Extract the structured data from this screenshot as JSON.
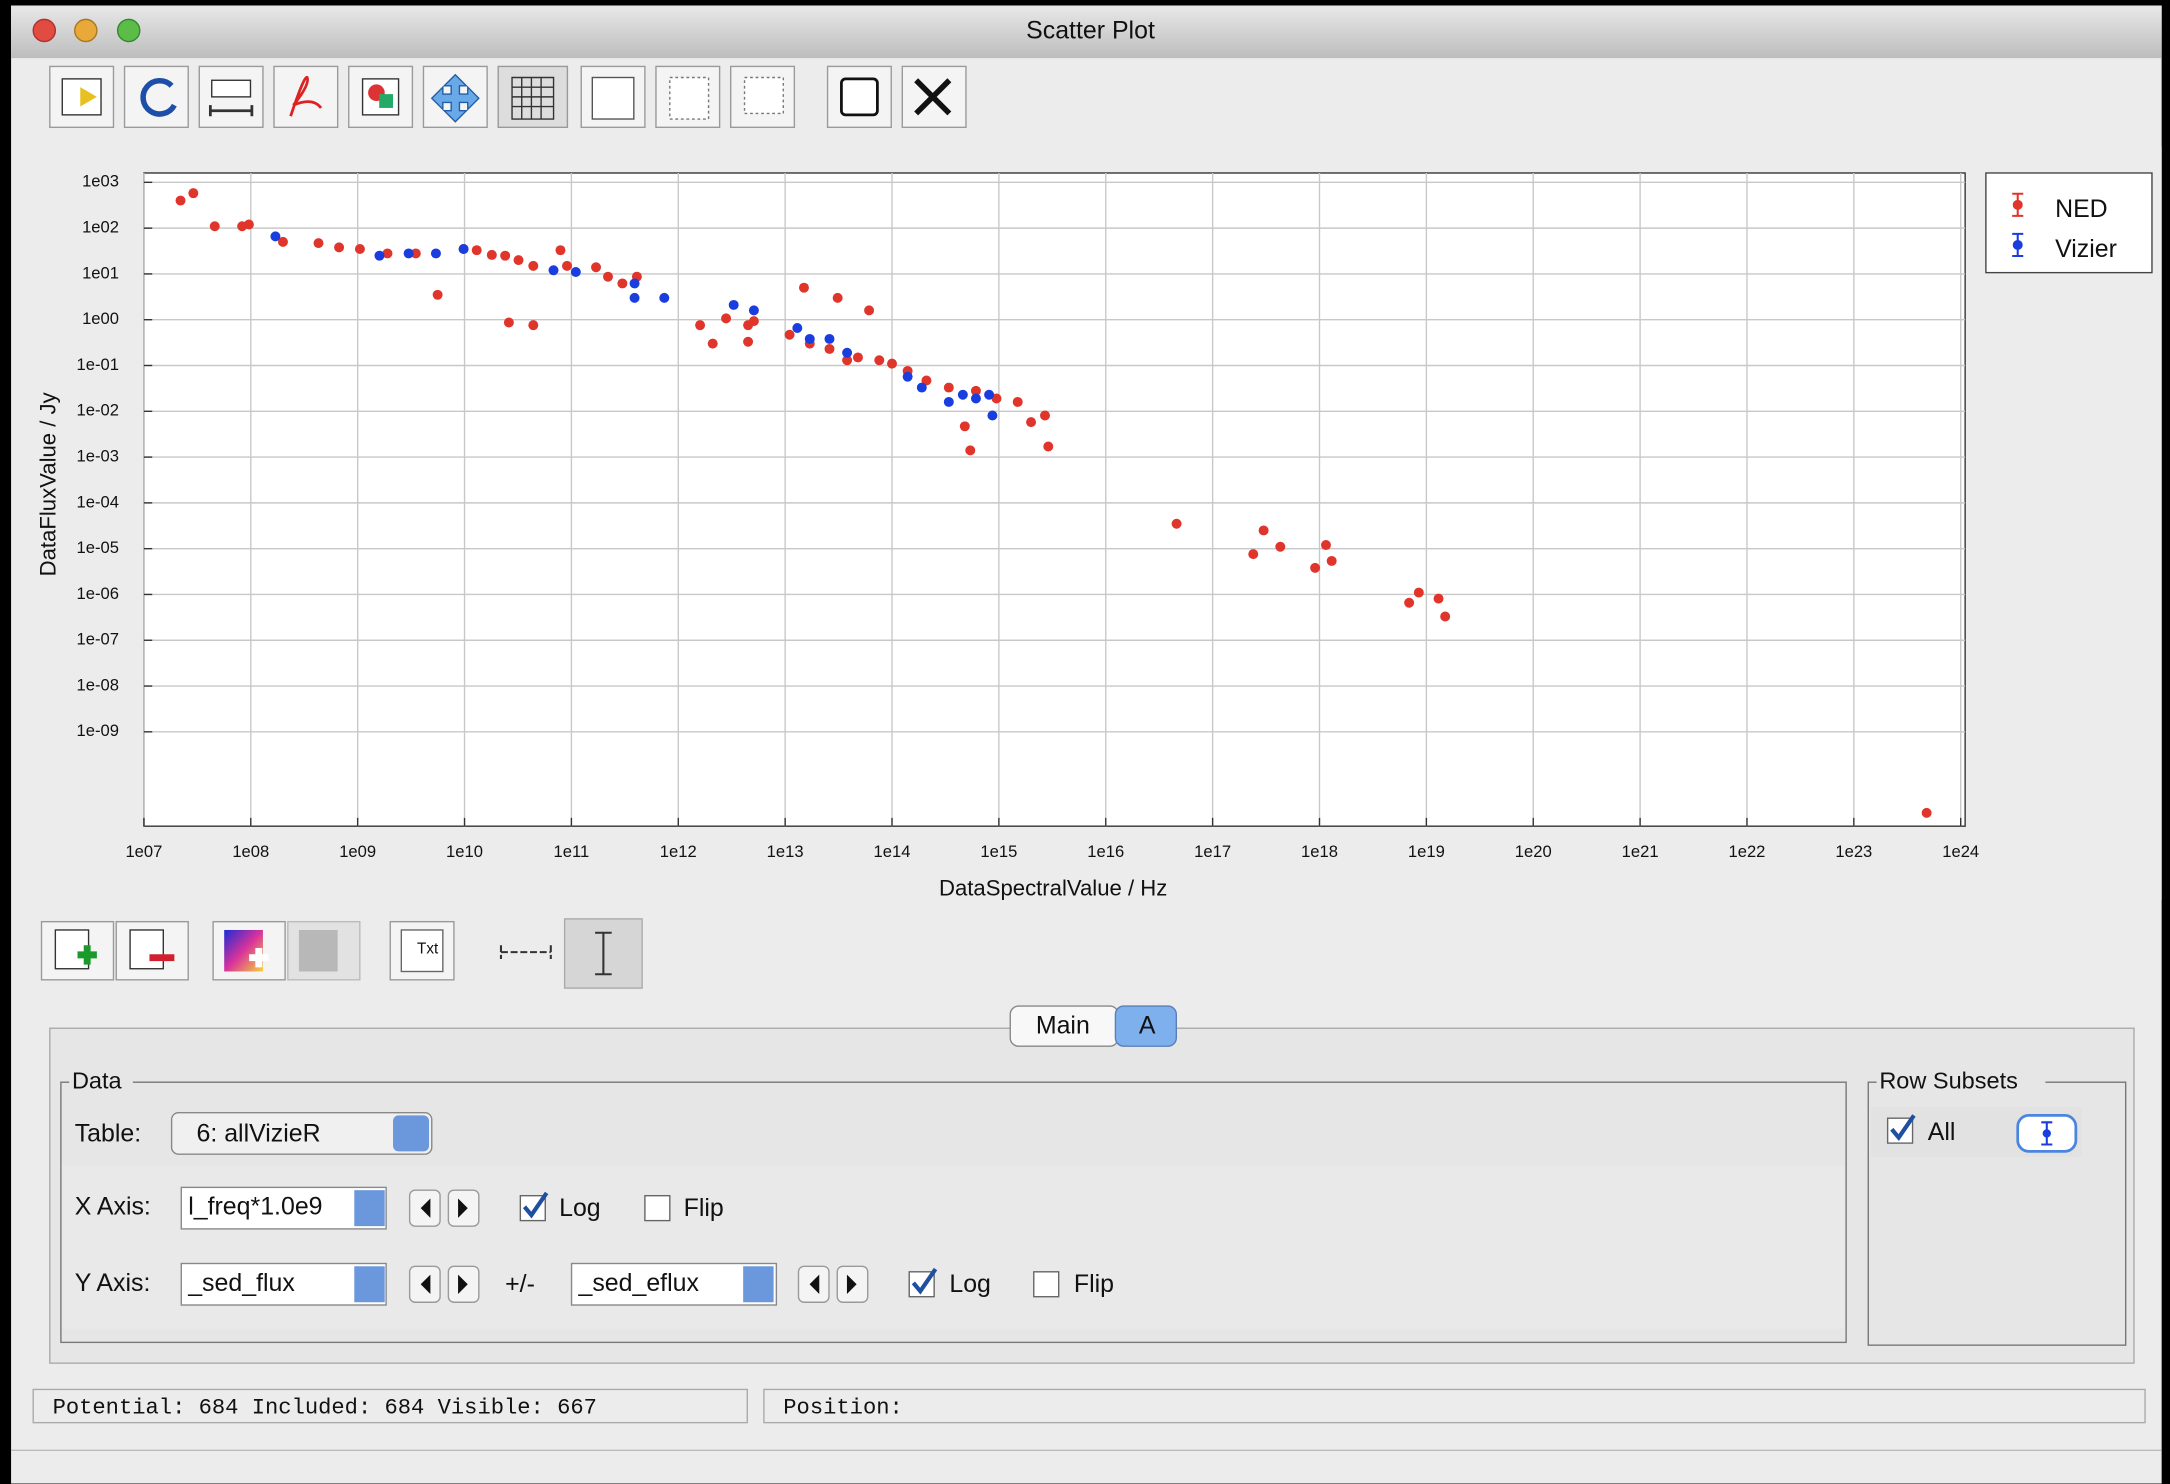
{
  "window": {
    "title": "Scatter Plot"
  },
  "chart_data": {
    "type": "scatter",
    "xlabel": "DataSpectralValue / Hz",
    "ylabel": "DataFluxValue / Jy",
    "xscale": "log",
    "yscale": "log",
    "grid": true,
    "legend": "right",
    "xlim": [
      10000000.0,
      1.1e+24
    ],
    "ylim": [
      8.7e-12,
      1600
    ],
    "xticks": [
      {
        "value": 10000000.0,
        "label": "1e07"
      },
      {
        "value": 100000000.0,
        "label": "1e08"
      },
      {
        "value": 1000000000.0,
        "label": "1e09"
      },
      {
        "value": 10000000000.0,
        "label": "1e10"
      },
      {
        "value": 100000000000.0,
        "label": "1e11"
      },
      {
        "value": 1000000000000.0,
        "label": "1e12"
      },
      {
        "value": 10000000000000.0,
        "label": "1e13"
      },
      {
        "value": 100000000000000.0,
        "label": "1e14"
      },
      {
        "value": 1000000000000000.0,
        "label": "1e15"
      },
      {
        "value": 1e+16,
        "label": "1e16"
      },
      {
        "value": 1e+17,
        "label": "1e17"
      },
      {
        "value": 1e+18,
        "label": "1e18"
      },
      {
        "value": 1e+19,
        "label": "1e19"
      },
      {
        "value": 1e+20,
        "label": "1e20"
      },
      {
        "value": 1e+21,
        "label": "1e21"
      },
      {
        "value": 1e+22,
        "label": "1e22"
      },
      {
        "value": 1e+23,
        "label": "1e23"
      },
      {
        "value": 1e+24,
        "label": "1e24"
      }
    ],
    "yticks": [
      {
        "value": 1000.0,
        "label": "1e03"
      },
      {
        "value": 100.0,
        "label": "1e02"
      },
      {
        "value": 10.0,
        "label": "1e01"
      },
      {
        "value": 1,
        "label": "1e00"
      },
      {
        "value": 0.1,
        "label": "1e-01"
      },
      {
        "value": 0.01,
        "label": "1e-02"
      },
      {
        "value": 0.001,
        "label": "1e-03"
      },
      {
        "value": 0.0001,
        "label": "1e-04"
      },
      {
        "value": 1e-05,
        "label": "1e-05"
      },
      {
        "value": 1e-06,
        "label": "1e-06"
      },
      {
        "value": 1e-07,
        "label": "1e-07"
      },
      {
        "value": 1e-08,
        "label": "1e-08"
      },
      {
        "value": 1e-09,
        "label": "1e-09"
      }
    ],
    "series": [
      {
        "name": "NED",
        "color": "#e0352b",
        "x": [
          22000000.0,
          29000000.0,
          46000000.0,
          83000000.0,
          96000000.0,
          200000000.0,
          430000000.0,
          670000000.0,
          1050000000.0,
          1900000000.0,
          3500000000.0,
          5600000000.0,
          9800000000.0,
          13000000000.0,
          18000000000.0,
          24000000000.0,
          32000000000.0,
          44000000000.0,
          26000000000.0,
          44000000000.0,
          79000000000.0,
          91000000000.0,
          170000000000.0,
          220000000000.0,
          300000000000.0,
          410000000000.0,
          1600000000000.0,
          2100000000000.0,
          2800000000000.0,
          4500000000000.0,
          4500000000000.0,
          5100000000000.0,
          11000000000000.0,
          15000000000000.0,
          17000000000000.0,
          26000000000000.0,
          31000000000000.0,
          38000000000000.0,
          48000000000000.0,
          61000000000000.0,
          76000000000000.0,
          100000000000000.0,
          140000000000000.0,
          210000000000000.0,
          340000000000000.0,
          480000000000000.0,
          540000000000000.0,
          610000000000000.0,
          950000000000000.0,
          1500000000000000.0,
          2000000000000000.0,
          2700000000000000.0,
          2900000000000000.0,
          4.6e+16,
          2.4e+17,
          3e+17,
          4.3e+17,
          9.1e+17,
          1.15e+18,
          1.3e+18,
          6.9e+18,
          8.5e+18,
          1.3e+19,
          1.5e+19,
          4.8e+23
        ],
        "values": [
          400,
          580,
          110,
          110,
          120,
          50,
          47,
          38,
          35,
          28,
          28,
          3.5,
          35,
          33,
          26,
          25,
          20,
          15,
          0.87,
          0.76,
          33,
          15,
          14,
          8.7,
          6.2,
          8.7,
          0.76,
          0.3,
          1.07,
          0.76,
          0.33,
          0.93,
          0.47,
          5,
          0.3,
          0.23,
          3,
          0.13,
          0.15,
          1.6,
          0.13,
          0.11,
          0.076,
          0.047,
          0.033,
          0.0047,
          0.0014,
          0.028,
          0.019,
          0.016,
          0.0058,
          0.0081,
          0.0017,
          3.5e-05,
          7.6e-06,
          2.5e-05,
          1.1e-05,
          3.8e-06,
          1.2e-05,
          5.4e-06,
          6.6e-07,
          1.1e-06,
          8.1e-07,
          3.3e-07,
          1.7e-11
        ]
      },
      {
        "name": "Vizier",
        "color": "#1a3de0",
        "x": [
          170000000.0,
          1600000000.0,
          3000000000.0,
          5400000000.0,
          9800000000.0,
          68000000000.0,
          110000000000.0,
          390000000000.0,
          390000000000.0,
          740000000000.0,
          3300000000000.0,
          5100000000000.0,
          13000000000000.0,
          17000000000000.0,
          26000000000000.0,
          38000000000000.0,
          140000000000000.0,
          190000000000000.0,
          340000000000000.0,
          460000000000000.0,
          610000000000000.0,
          810000000000000.0,
          870000000000000.0
        ],
        "values": [
          66,
          25,
          28,
          28,
          35,
          12,
          11,
          6.2,
          3,
          3,
          2.1,
          1.6,
          0.66,
          0.38,
          0.38,
          0.19,
          0.057,
          0.033,
          0.016,
          0.023,
          0.019,
          0.023,
          0.0081
        ]
      }
    ]
  },
  "controls": {
    "tabs": [
      "Main",
      "A"
    ],
    "text_tool": "Txt",
    "data_group": "Data",
    "table_label": "Table:",
    "table_value": "6: allVizieR",
    "x_axis": {
      "label": "X Axis:",
      "value": "l_freq*1.0e9",
      "log": "Log",
      "flip": "Flip"
    },
    "y_axis": {
      "label": "Y Axis:",
      "value": "_sed_flux",
      "error_label": "+/-",
      "error_value": "_sed_eflux",
      "log": "Log",
      "flip": "Flip"
    },
    "row_subsets": "Row Subsets",
    "subset_all": "All"
  },
  "status": {
    "counts": "Potential: 684 Included: 684 Visible: 667",
    "position": "Position:"
  }
}
